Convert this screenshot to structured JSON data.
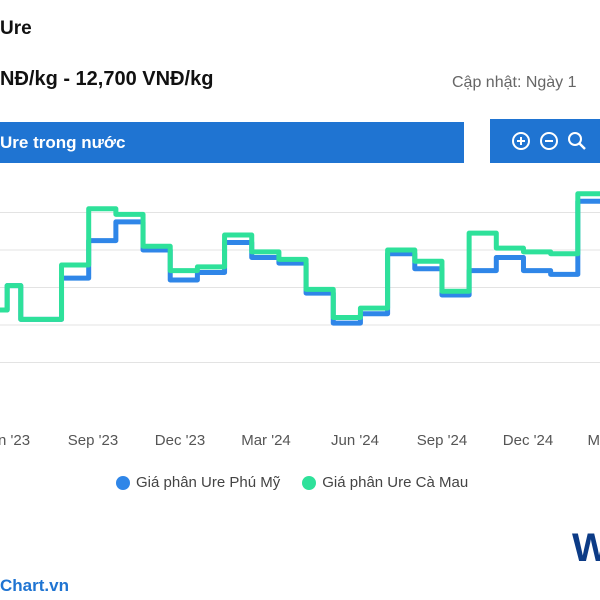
{
  "header": {
    "title": "Ure",
    "price_range": "NĐ/kg - 12,700 VNĐ/kg",
    "update_text": "Cập nhật: Ngày 1"
  },
  "tab": {
    "label": "Ure trong nước"
  },
  "toolbar": {
    "buttons": [
      {
        "name": "zoom-in-icon"
      },
      {
        "name": "zoom-out-icon"
      },
      {
        "name": "magnifier-icon"
      }
    ]
  },
  "colors": {
    "accent": "#1f74d2",
    "series_phu_my": "#2f86e8",
    "series_ca_mau": "#2ee19a"
  },
  "chart_data": {
    "type": "line",
    "step": true,
    "x_ticks": [
      "n '23",
      "Sep '23",
      "Dec '23",
      "Mar '24",
      "Jun '24",
      "Sep '24",
      "Dec '24",
      "M"
    ],
    "x_range": [
      0,
      23
    ],
    "y_range": [
      -1,
      11
    ],
    "grid_levels": [
      1,
      3,
      5,
      7,
      9
    ],
    "legend_position": "bottom",
    "series": [
      {
        "name": "Giá phân Ure Phú Mỹ",
        "color": "#2f86e8",
        "points": [
          [
            0,
            3.8
          ],
          [
            1,
            3.8
          ],
          [
            1,
            5.1
          ],
          [
            1.5,
            5.1
          ],
          [
            1.5,
            3.3
          ],
          [
            3,
            3.3
          ],
          [
            3,
            5.5
          ],
          [
            4,
            5.5
          ],
          [
            4,
            7.5
          ],
          [
            5,
            7.5
          ],
          [
            5,
            8.5
          ],
          [
            6,
            8.5
          ],
          [
            6,
            7.0
          ],
          [
            7,
            7.0
          ],
          [
            7,
            5.4
          ],
          [
            8,
            5.4
          ],
          [
            8,
            5.8
          ],
          [
            9,
            5.8
          ],
          [
            9,
            7.4
          ],
          [
            10,
            7.4
          ],
          [
            10,
            6.6
          ],
          [
            11,
            6.6
          ],
          [
            11,
            6.3
          ],
          [
            12,
            6.3
          ],
          [
            12,
            4.7
          ],
          [
            13,
            4.7
          ],
          [
            13,
            3.1
          ],
          [
            14,
            3.1
          ],
          [
            14,
            3.6
          ],
          [
            15,
            3.6
          ],
          [
            15,
            6.8
          ],
          [
            16,
            6.8
          ],
          [
            16,
            6.0
          ],
          [
            17,
            6.0
          ],
          [
            17,
            4.6
          ],
          [
            18,
            4.6
          ],
          [
            18,
            5.9
          ],
          [
            19,
            5.9
          ],
          [
            19,
            6.6
          ],
          [
            20,
            6.6
          ],
          [
            20,
            5.9
          ],
          [
            21,
            5.9
          ],
          [
            21,
            5.7
          ],
          [
            22,
            5.7
          ],
          [
            22,
            9.6
          ],
          [
            23,
            9.6
          ]
        ]
      },
      {
        "name": "Giá phân Ure Cà Mau",
        "color": "#2ee19a",
        "points": [
          [
            0,
            3.8
          ],
          [
            1,
            3.8
          ],
          [
            1,
            5.1
          ],
          [
            1.5,
            5.1
          ],
          [
            1.5,
            3.3
          ],
          [
            3,
            3.3
          ],
          [
            3,
            6.2
          ],
          [
            4,
            6.2
          ],
          [
            4,
            9.2
          ],
          [
            5,
            9.2
          ],
          [
            5,
            8.9
          ],
          [
            6,
            8.9
          ],
          [
            6,
            7.2
          ],
          [
            7,
            7.2
          ],
          [
            7,
            5.9
          ],
          [
            8,
            5.9
          ],
          [
            8,
            6.1
          ],
          [
            9,
            6.1
          ],
          [
            9,
            7.8
          ],
          [
            10,
            7.8
          ],
          [
            10,
            6.9
          ],
          [
            11,
            6.9
          ],
          [
            11,
            6.5
          ],
          [
            12,
            6.5
          ],
          [
            12,
            4.9
          ],
          [
            13,
            4.9
          ],
          [
            13,
            3.4
          ],
          [
            14,
            3.4
          ],
          [
            14,
            3.9
          ],
          [
            15,
            3.9
          ],
          [
            15,
            7.0
          ],
          [
            16,
            7.0
          ],
          [
            16,
            6.4
          ],
          [
            17,
            6.4
          ],
          [
            17,
            4.8
          ],
          [
            18,
            4.8
          ],
          [
            18,
            7.9
          ],
          [
            19,
            7.9
          ],
          [
            19,
            7.1
          ],
          [
            20,
            7.1
          ],
          [
            20,
            6.9
          ],
          [
            21,
            6.9
          ],
          [
            21,
            6.8
          ],
          [
            22,
            6.8
          ],
          [
            22,
            10.0
          ],
          [
            23,
            10.0
          ]
        ]
      }
    ]
  },
  "footer": {
    "brand": "Chart.vn",
    "logo_text": "W"
  }
}
